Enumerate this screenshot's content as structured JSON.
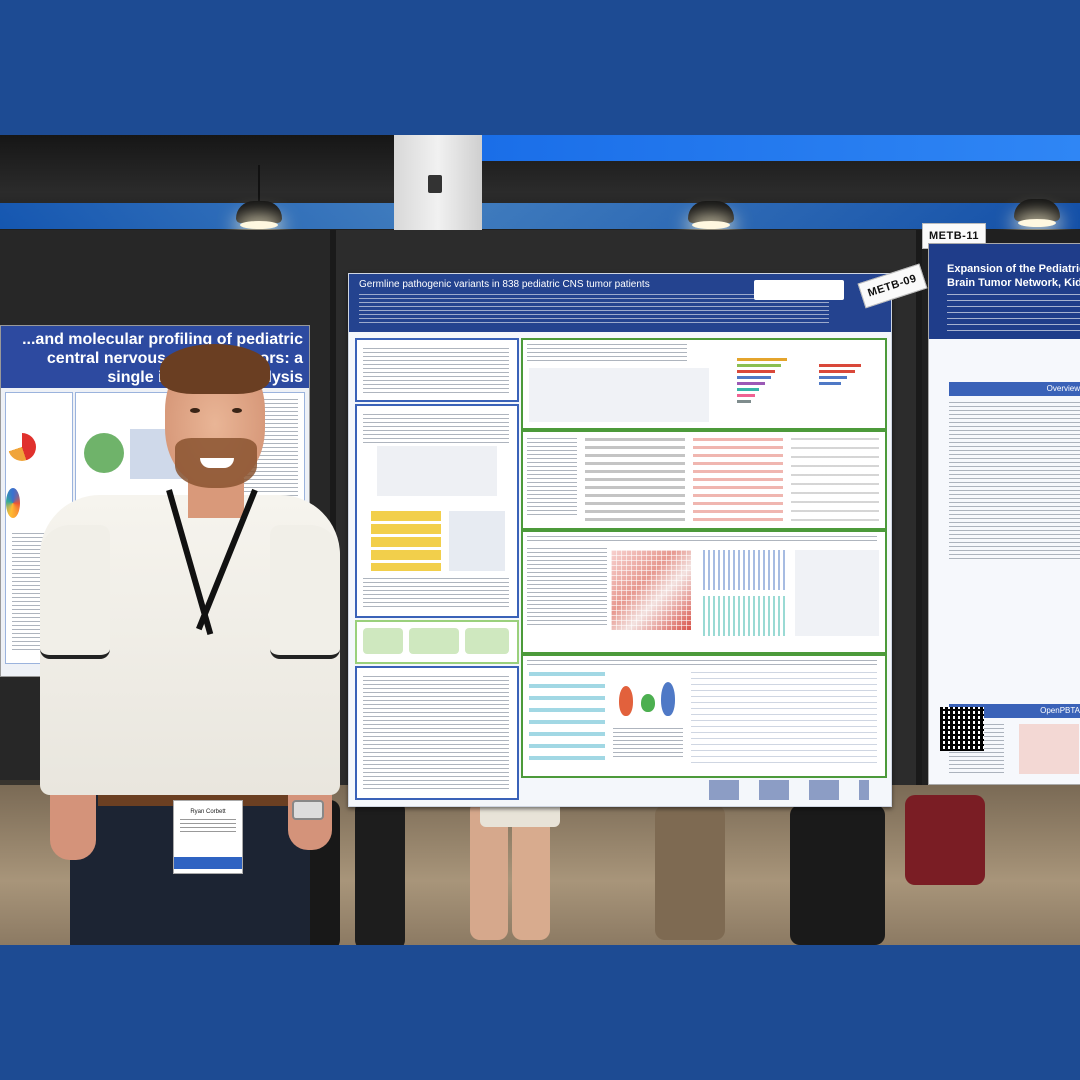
{
  "poster_main": {
    "title": "Germline pathogenic variants in 838 pediatric CNS tumor patients"
  },
  "poster_left": {
    "title": "...and molecular profiling of pediatric central nervous system tumors: a single institution analysis"
  },
  "poster_right": {
    "title": "Expansion of the Pediatric Brain Tumor Network, Kid",
    "section_overview": "Overview",
    "section_openpbta": "OpenPBTA"
  },
  "tags": {
    "metb_09": "METB-09",
    "metb_11": "METB-11"
  },
  "badge": {
    "name": "Ryan Corbett"
  }
}
